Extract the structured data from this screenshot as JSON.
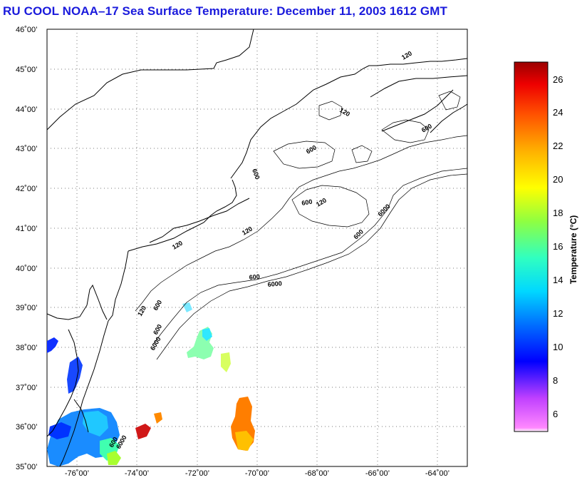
{
  "title": "RU COOL  NOAA–17  Sea Surface Temperature:  December 11, 2003 1612 GMT",
  "map": {
    "lon_range": [
      -77,
      -63
    ],
    "lat_range": [
      35,
      46
    ],
    "lat_labels": [
      "46˚00’",
      "45˚00’",
      "44˚00’",
      "43˚00’",
      "42˚00’",
      "41˚00’",
      "40˚00’",
      "39˚00’",
      "38˚00’",
      "37˚00’",
      "36˚00’",
      "35˚00’"
    ],
    "lon_labels": [
      "-76˚00’",
      "-74˚00’",
      "-72˚00’",
      "-70˚00’",
      "-68˚00’",
      "-66˚00’",
      "-64˚00’"
    ],
    "contour_labels": [
      "120",
      "120",
      "600",
      "600",
      "600",
      "600",
      "120",
      "600",
      "6000",
      "120",
      "600",
      "6000",
      "600",
      "6000",
      "120",
      "600",
      "6000",
      "120",
      "600"
    ],
    "grid": true
  },
  "colorbar": {
    "title": "Temperature (°C)",
    "range": [
      5,
      27
    ],
    "ticks": [
      "26",
      "24",
      "22",
      "20",
      "18",
      "16",
      "14",
      "12",
      "10",
      "8",
      "6"
    ],
    "colors": [
      "#ff66ff",
      "#8a2be2",
      "#0000ff",
      "#0080ff",
      "#00e0ff",
      "#40ffb0",
      "#80ff40",
      "#ffff00",
      "#ffb000",
      "#ff6000",
      "#ff0000",
      "#a00000"
    ]
  },
  "colors": {
    "title": "#1a1adc",
    "coastline": "#000000",
    "grid": "#888888"
  }
}
